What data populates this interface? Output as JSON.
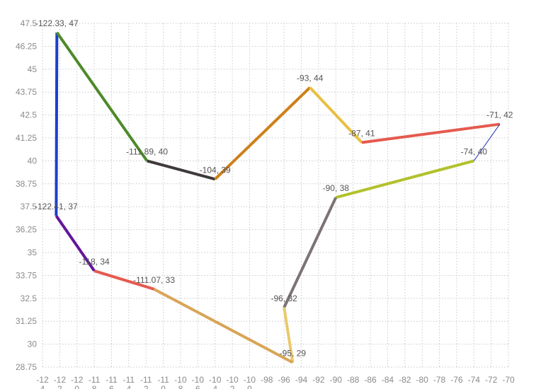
{
  "chart_data": {
    "type": "line",
    "title": "",
    "xlabel": "",
    "ylabel": "",
    "xlim": [
      -124,
      -70
    ],
    "ylim": [
      28.75,
      47.5
    ],
    "grid": true,
    "y_ticks": [
      "47.5",
      "46.25",
      "45",
      "43.75",
      "42.5",
      "41.25",
      "40",
      "38.75",
      "37.5",
      "36.25",
      "35",
      "33.75",
      "32.5",
      "31.25",
      "30",
      "28.75"
    ],
    "x_ticks": [
      [
        "-12",
        "4"
      ],
      [
        "-12",
        "2"
      ],
      [
        "-12",
        "0"
      ],
      [
        "-11",
        "8"
      ],
      [
        "-11",
        "6"
      ],
      [
        "-11",
        "4"
      ],
      [
        "-11",
        "2"
      ],
      [
        "-11",
        "0"
      ],
      [
        "-10",
        "8"
      ],
      [
        "-10",
        "6"
      ],
      [
        "-10",
        "4"
      ],
      [
        "-10",
        "2"
      ],
      [
        "-10",
        "0"
      ],
      [
        "-98"
      ],
      [
        "-96"
      ],
      [
        "-94"
      ],
      [
        "-92"
      ],
      [
        "-90"
      ],
      [
        "-88"
      ],
      [
        "-86"
      ],
      [
        "-84"
      ],
      [
        "-82"
      ],
      [
        "-80"
      ],
      [
        "-78"
      ],
      [
        "-76"
      ],
      [
        "-74"
      ],
      [
        "-72"
      ],
      [
        "-70"
      ]
    ],
    "points": [
      {
        "x": -122.41,
        "y": 37,
        "label": "-122.41, 37"
      },
      {
        "x": -122.33,
        "y": 47,
        "label": "-122.33, 47"
      },
      {
        "x": -111.89,
        "y": 40,
        "label": "-111.89, 40"
      },
      {
        "x": -104,
        "y": 39,
        "label": "-104, 39"
      },
      {
        "x": -93,
        "y": 44,
        "label": "-93, 44"
      },
      {
        "x": -87,
        "y": 41,
        "label": "-87, 41"
      },
      {
        "x": -71,
        "y": 42,
        "label": "-71, 42"
      },
      {
        "x": -74,
        "y": 40,
        "label": "-74, 40"
      },
      {
        "x": -90,
        "y": 38,
        "label": "-90, 38"
      },
      {
        "x": -96,
        "y": 32,
        "label": "-96, 32"
      },
      {
        "x": -95,
        "y": 29,
        "label": "-95, 29"
      },
      {
        "x": -111.07,
        "y": 33,
        "label": "-111.07, 33"
      },
      {
        "x": -118,
        "y": 34,
        "label": "-118, 34"
      }
    ],
    "segments": [
      {
        "from": 0,
        "to": 1,
        "color": "#1b3fcf",
        "width": 4
      },
      {
        "from": 1,
        "to": 2,
        "color": "#4d8a2a",
        "width": 4
      },
      {
        "from": 2,
        "to": 3,
        "color": "#3f3a3a",
        "width": 4
      },
      {
        "from": 3,
        "to": 4,
        "color": "#cf7f1a",
        "width": 4
      },
      {
        "from": 4,
        "to": 5,
        "color": "#e8c040",
        "width": 4
      },
      {
        "from": 5,
        "to": 6,
        "color": "#e55a4f",
        "width": 4
      },
      {
        "from": 6,
        "to": 7,
        "color": "#2233bb",
        "width": 1
      },
      {
        "from": 7,
        "to": 8,
        "color": "#b2c12c",
        "width": 4
      },
      {
        "from": 8,
        "to": 9,
        "color": "#7d7373",
        "width": 4
      },
      {
        "from": 9,
        "to": 10,
        "color": "#e8c96a",
        "width": 4
      },
      {
        "from": 10,
        "to": 11,
        "color": "#d8a556",
        "width": 4
      },
      {
        "from": 11,
        "to": 12,
        "color": "#e55a4f",
        "width": 4
      },
      {
        "from": 12,
        "to": 0,
        "color": "#63169a",
        "width": 4
      }
    ]
  }
}
